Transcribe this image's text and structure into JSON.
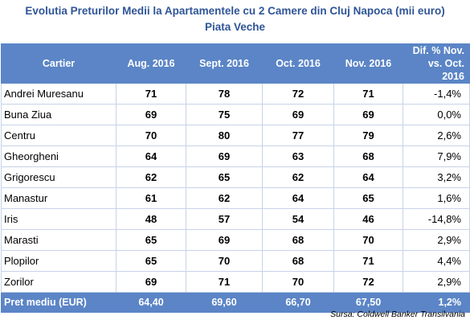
{
  "title": {
    "line1": "Evolutia Preturilor Medii la Apartamentele cu 2 Camere din Cluj Napoca (mii euro)",
    "line2": "Piata Veche"
  },
  "table": {
    "headers": [
      "Cartier",
      "Aug. 2016",
      "Sept. 2016",
      "Oct. 2016",
      "Nov. 2016",
      "Dif. % Nov.",
      "vs. Oct. 2016"
    ],
    "rows": [
      {
        "cartier": "Andrei Muresanu",
        "aug": "71",
        "sept": "78",
        "oct": "72",
        "nov": "71",
        "dif": "-1,4%"
      },
      {
        "cartier": "Buna Ziua",
        "aug": "69",
        "sept": "75",
        "oct": "69",
        "nov": "69",
        "dif": "0,0%"
      },
      {
        "cartier": "Centru",
        "aug": "70",
        "sept": "80",
        "oct": "77",
        "nov": "79",
        "dif": "2,6%"
      },
      {
        "cartier": "Gheorgheni",
        "aug": "64",
        "sept": "69",
        "oct": "63",
        "nov": "68",
        "dif": "7,9%"
      },
      {
        "cartier": "Grigorescu",
        "aug": "62",
        "sept": "65",
        "oct": "62",
        "nov": "64",
        "dif": "3,2%"
      },
      {
        "cartier": "Manastur",
        "aug": "61",
        "sept": "62",
        "oct": "64",
        "nov": "65",
        "dif": "1,6%"
      },
      {
        "cartier": "Iris",
        "aug": "48",
        "sept": "57",
        "oct": "54",
        "nov": "46",
        "dif": "-14,8%"
      },
      {
        "cartier": "Marasti",
        "aug": "65",
        "sept": "69",
        "oct": "68",
        "nov": "70",
        "dif": "2,9%"
      },
      {
        "cartier": "Plopilor",
        "aug": "65",
        "sept": "70",
        "oct": "68",
        "nov": "71",
        "dif": "4,4%"
      },
      {
        "cartier": "Zorilor",
        "aug": "69",
        "sept": "71",
        "oct": "70",
        "nov": "72",
        "dif": "2,9%"
      }
    ],
    "footer": {
      "label": "Pret mediu (EUR)",
      "aug": "64,40",
      "sept": "69,60",
      "oct": "66,70",
      "nov": "67,50",
      "dif": "1,2%"
    }
  },
  "source": "Sursa: Coldwell Banker Transilvania",
  "colors": {
    "header_bg": "#5b85c6",
    "title_text": "#2f5597",
    "grid_line": "#c7d3e8"
  }
}
